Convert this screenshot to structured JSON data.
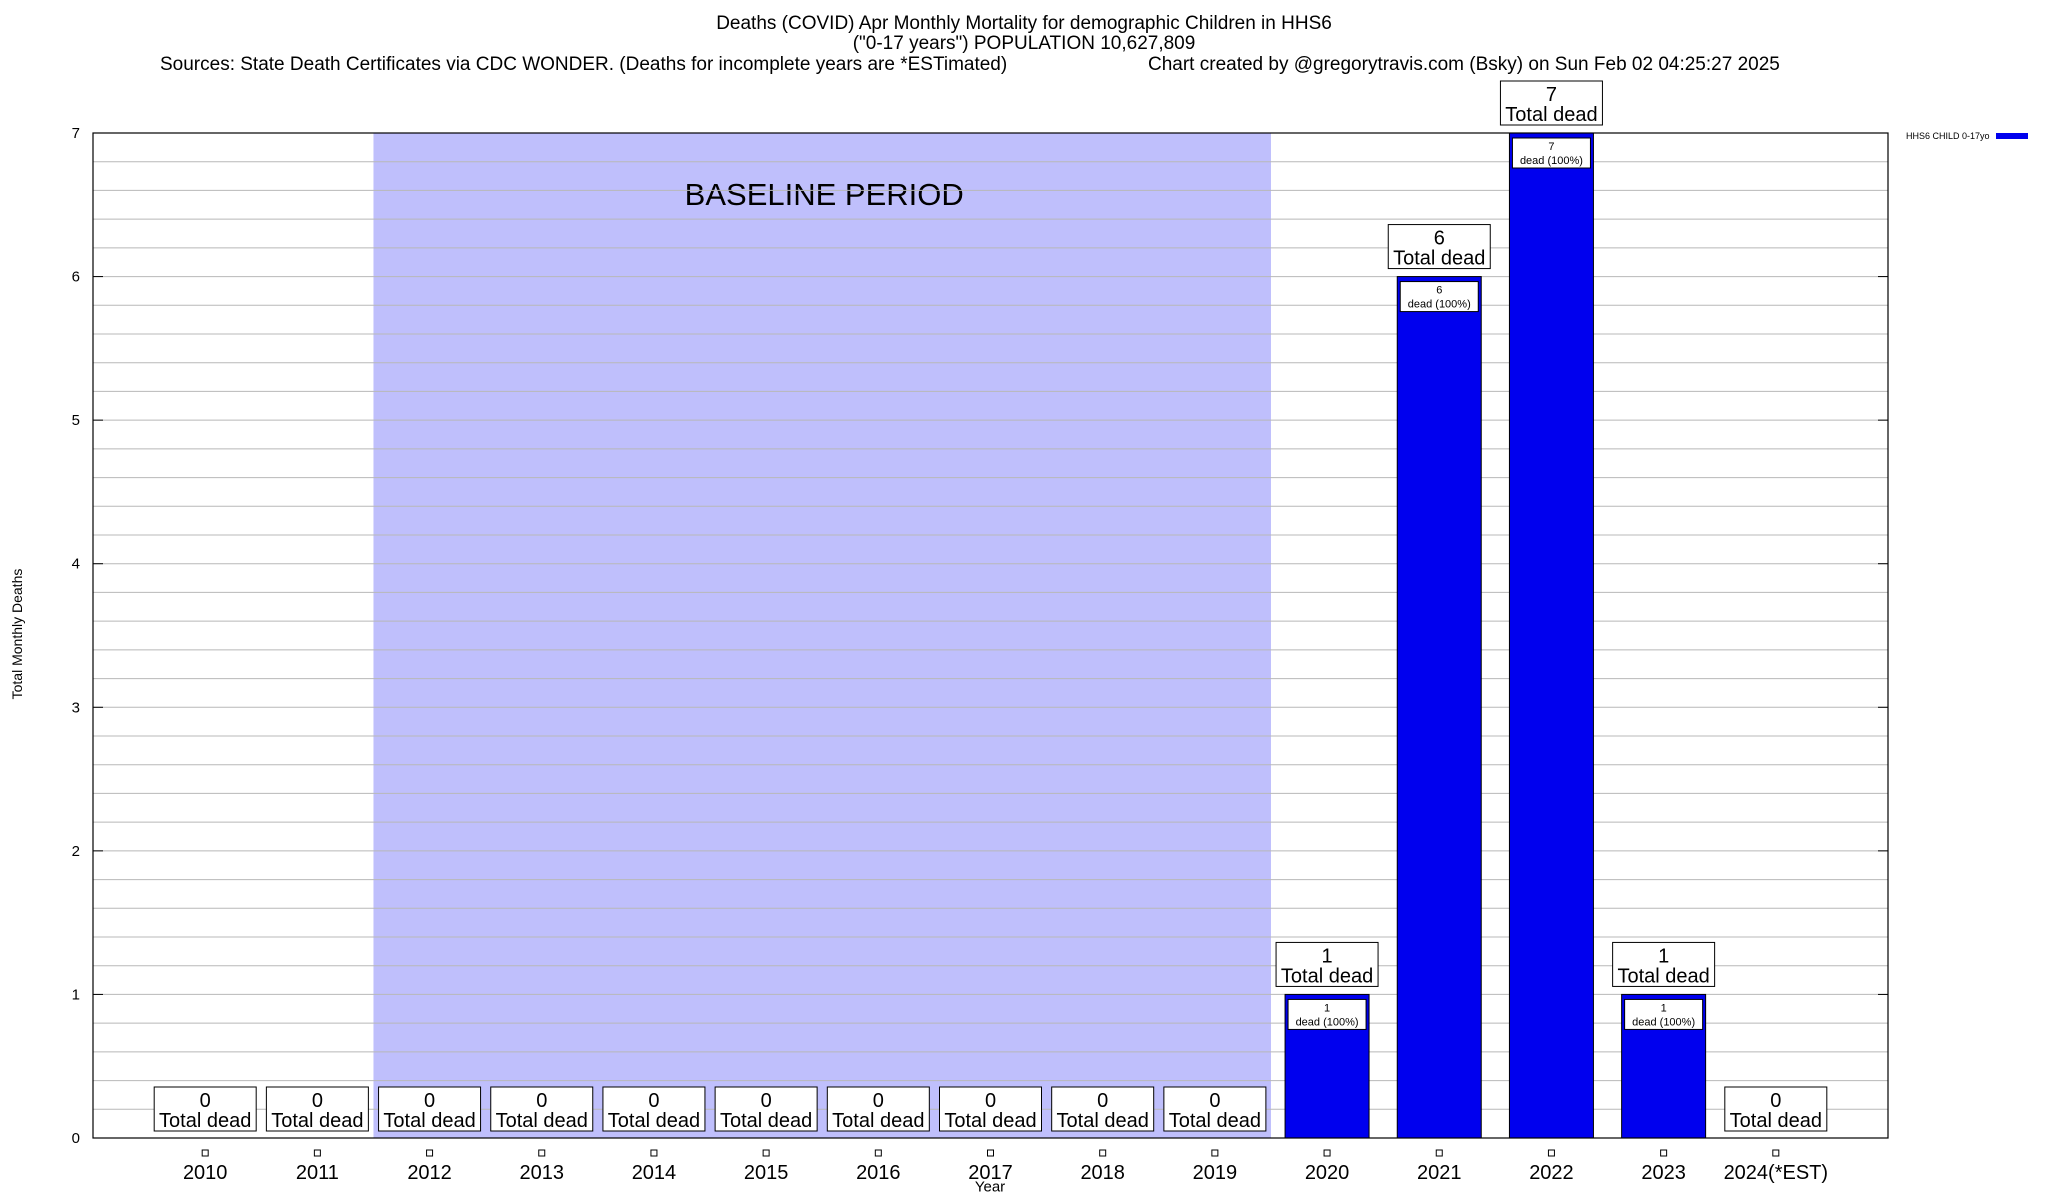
{
  "colors": {
    "bar": "#0000ee",
    "baseline_band": "#bfbffc",
    "grid": "#b8b8b8",
    "axis": "#000000"
  },
  "header": {
    "title_line1": "Deaths (COVID) Apr Monthly Mortality for demographic Children in HHS6",
    "title_line2": "(\"0-17 years\") POPULATION 10,627,809",
    "sources": "Sources: State Death Certificates via CDC WONDER. (Deaths for incomplete years are *ESTimated)",
    "credit": "Chart created by @gregorytravis.com (Bsky) on Sun Feb 02 04:25:27 2025"
  },
  "chart_data": {
    "type": "bar",
    "xlabel": "Year",
    "ylabel": "Total Monthly Deaths",
    "ylim": [
      0,
      7
    ],
    "yticks": [
      "0",
      "1",
      "2",
      "3",
      "4",
      "5",
      "6",
      "7"
    ],
    "categories": [
      "2010",
      "2011",
      "2012",
      "2013",
      "2014",
      "2015",
      "2016",
      "2017",
      "2018",
      "2019",
      "2020",
      "2021",
      "2022",
      "2023",
      "2024(*EST)"
    ],
    "series": [
      {
        "name": "HHS6 CHILD 0-17yo",
        "values": [
          0,
          0,
          0,
          0,
          0,
          0,
          0,
          0,
          0,
          0,
          1,
          6,
          7,
          1,
          0
        ]
      }
    ],
    "total_label": "Total dead",
    "bar_label_suffix": "dead (100%)",
    "baseline_band": {
      "label": "BASELINE PERIOD",
      "from": "2012",
      "to": "2019"
    },
    "grid": true,
    "legend_position": "top-right"
  }
}
